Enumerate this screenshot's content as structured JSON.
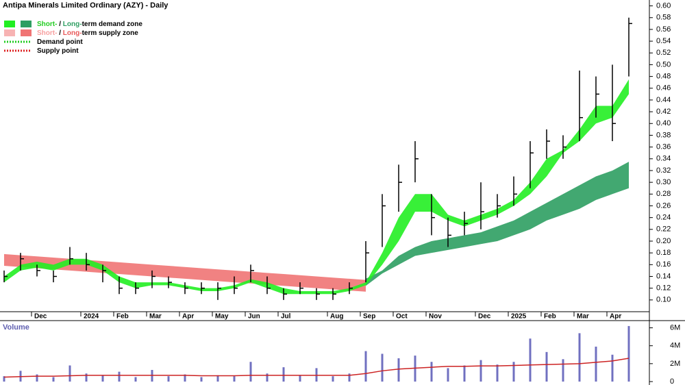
{
  "chart_data": {
    "type": "ohlc",
    "title": "Antipa Minerals Limited Ordinary (AZY) - Daily",
    "legend": [
      {
        "swatches": [
          "#22ee22",
          "#2e9e62"
        ],
        "parts": [
          {
            "text": "Short-",
            "color": "#22cc22"
          },
          {
            "text": " / ",
            "color": "#000000"
          },
          {
            "text": "Long-",
            "color": "#2e9e62"
          },
          {
            "text": "term demand zone",
            "color": "#000000"
          }
        ]
      },
      {
        "swatches": [
          "#f7b3b3",
          "#f07474"
        ],
        "parts": [
          {
            "text": "Short-",
            "color": "#f7a0a0"
          },
          {
            "text": " / ",
            "color": "#000000"
          },
          {
            "text": "Long-",
            "color": "#e85a5a"
          },
          {
            "text": "term supply zone",
            "color": "#000000"
          }
        ]
      },
      {
        "dotted": "#22cc22",
        "parts": [
          {
            "text": "Demand point",
            "color": "#000000"
          }
        ]
      },
      {
        "dotted": "#dd2222",
        "parts": [
          {
            "text": "Supply point",
            "color": "#000000"
          }
        ]
      }
    ],
    "categories": [
      null,
      null,
      "Dec",
      null,
      null,
      "2024",
      null,
      "Feb",
      null,
      "Mar",
      null,
      "Apr",
      null,
      "May",
      null,
      "Jun",
      null,
      "Jul",
      null,
      null,
      "Aug",
      null,
      "Sep",
      null,
      "Oct",
      null,
      "Nov",
      null,
      null,
      "Dec",
      null,
      "2025",
      null,
      "Feb",
      null,
      "Mar",
      null,
      "Apr",
      null
    ],
    "high": [
      0.15,
      0.18,
      0.16,
      0.15,
      0.19,
      0.18,
      0.16,
      0.14,
      0.13,
      0.15,
      0.14,
      0.13,
      0.13,
      0.13,
      0.14,
      0.16,
      0.14,
      0.12,
      0.13,
      0.12,
      0.12,
      0.13,
      0.2,
      0.28,
      0.33,
      0.37,
      0.28,
      0.24,
      0.25,
      0.3,
      0.28,
      0.31,
      0.37,
      0.39,
      0.38,
      0.49,
      0.48,
      0.5,
      0.58
    ],
    "low": [
      0.13,
      0.15,
      0.14,
      0.13,
      0.16,
      0.15,
      0.13,
      0.11,
      0.11,
      0.12,
      0.12,
      0.11,
      0.11,
      0.1,
      0.11,
      0.13,
      0.11,
      0.1,
      0.11,
      0.1,
      0.1,
      0.11,
      0.13,
      0.19,
      0.25,
      0.3,
      0.21,
      0.19,
      0.21,
      0.22,
      0.24,
      0.26,
      0.29,
      0.34,
      0.34,
      0.37,
      0.41,
      0.37,
      0.48
    ],
    "close": [
      0.14,
      0.17,
      0.15,
      0.14,
      0.17,
      0.16,
      0.15,
      0.12,
      0.12,
      0.14,
      0.13,
      0.12,
      0.12,
      0.12,
      0.12,
      0.15,
      0.12,
      0.11,
      0.12,
      0.11,
      0.11,
      0.12,
      0.18,
      0.26,
      0.3,
      0.34,
      0.24,
      0.21,
      0.23,
      0.25,
      0.26,
      0.28,
      0.35,
      0.37,
      0.36,
      0.41,
      0.45,
      0.4,
      0.57
    ],
    "bands": [
      {
        "color": "#f07474",
        "upper": [
          0.178,
          0.176,
          0.174,
          0.172,
          0.17,
          0.168,
          0.166,
          0.164,
          0.162,
          0.16,
          0.158,
          0.156,
          0.154,
          0.152,
          0.15,
          0.148,
          0.146,
          0.144,
          0.142,
          0.14,
          0.138,
          0.136,
          0.134,
          null,
          null,
          null,
          null,
          null,
          null,
          null,
          null,
          null,
          null,
          null,
          null,
          null,
          null,
          null,
          null
        ],
        "lower": [
          0.158,
          0.156,
          0.154,
          0.152,
          0.15,
          0.148,
          0.146,
          0.144,
          0.142,
          0.14,
          0.138,
          0.136,
          0.134,
          0.132,
          0.13,
          0.128,
          0.126,
          0.124,
          0.122,
          0.12,
          0.118,
          0.116,
          0.114,
          null,
          null,
          null,
          null,
          null,
          null,
          null,
          null,
          null,
          null,
          null,
          null,
          null,
          null,
          null,
          null
        ]
      },
      {
        "color": "#2e9e62",
        "upper": [
          null,
          null,
          null,
          null,
          null,
          null,
          null,
          null,
          null,
          null,
          null,
          null,
          null,
          null,
          null,
          null,
          null,
          null,
          null,
          null,
          null,
          null,
          0.136,
          0.15,
          0.175,
          0.19,
          0.2,
          0.205,
          0.21,
          0.215,
          0.225,
          0.235,
          0.25,
          0.265,
          0.28,
          0.295,
          0.31,
          0.32,
          0.335
        ],
        "lower": [
          null,
          null,
          null,
          null,
          null,
          null,
          null,
          null,
          null,
          null,
          null,
          null,
          null,
          null,
          null,
          null,
          null,
          null,
          null,
          null,
          null,
          null,
          0.124,
          0.145,
          0.16,
          0.175,
          0.18,
          0.185,
          0.19,
          0.195,
          0.2,
          0.21,
          0.22,
          0.235,
          0.245,
          0.255,
          0.27,
          0.28,
          0.29
        ]
      },
      {
        "color": "#22ee22",
        "upper": [
          0.14,
          0.16,
          0.165,
          0.16,
          0.17,
          0.17,
          0.16,
          0.14,
          0.13,
          0.13,
          0.13,
          0.125,
          0.12,
          0.12,
          0.125,
          0.135,
          0.13,
          0.12,
          0.115,
          0.115,
          0.115,
          0.12,
          0.13,
          0.18,
          0.24,
          0.28,
          0.28,
          0.245,
          0.235,
          0.245,
          0.255,
          0.27,
          0.3,
          0.34,
          0.355,
          0.39,
          0.43,
          0.43,
          0.475
        ],
        "lower": [
          0.13,
          0.15,
          0.155,
          0.15,
          0.16,
          0.16,
          0.15,
          0.13,
          0.12,
          0.125,
          0.125,
          0.12,
          0.115,
          0.115,
          0.12,
          0.13,
          0.12,
          0.11,
          0.11,
          0.11,
          0.11,
          0.115,
          0.125,
          0.16,
          0.2,
          0.25,
          0.25,
          0.235,
          0.225,
          0.235,
          0.245,
          0.26,
          0.28,
          0.31,
          0.35,
          0.37,
          0.4,
          0.41,
          0.45
        ]
      }
    ],
    "ylim": [
      0.08,
      0.61
    ],
    "yticks": [
      {
        "value": 0.1,
        "label": "0.10"
      },
      {
        "value": 0.12,
        "label": "0.12"
      },
      {
        "value": 0.14,
        "label": "0.14"
      },
      {
        "value": 0.16,
        "label": "0.16"
      },
      {
        "value": 0.18,
        "label": "0.18"
      },
      {
        "value": 0.2,
        "label": "0.20"
      },
      {
        "value": 0.22,
        "label": "0.22"
      },
      {
        "value": 0.24,
        "label": "0.24"
      },
      {
        "value": 0.26,
        "label": "0.26"
      },
      {
        "value": 0.28,
        "label": "0.28"
      },
      {
        "value": 0.3,
        "label": "0.30"
      },
      {
        "value": 0.32,
        "label": "0.32"
      },
      {
        "value": 0.34,
        "label": "0.34"
      },
      {
        "value": 0.36,
        "label": "0.36"
      },
      {
        "value": 0.38,
        "label": "0.38"
      },
      {
        "value": 0.4,
        "label": "0.40"
      },
      {
        "value": 0.42,
        "label": "0.42"
      },
      {
        "value": 0.44,
        "label": "0.44"
      },
      {
        "value": 0.46,
        "label": "0.46"
      },
      {
        "value": 0.48,
        "label": "0.48"
      },
      {
        "value": 0.5,
        "label": "0.50"
      },
      {
        "value": 0.52,
        "label": "0.52"
      },
      {
        "value": 0.54,
        "label": "0.54"
      },
      {
        "value": 0.56,
        "label": "0.56"
      },
      {
        "value": 0.58,
        "label": "0.58"
      },
      {
        "value": 0.6,
        "label": "0.60"
      }
    ],
    "volume": {
      "title": "Volume",
      "color": "#7070c0",
      "ma_color": "#cc2222",
      "values": [
        600000,
        1200000,
        800000,
        500000,
        1800000,
        900000,
        700000,
        1100000,
        500000,
        1300000,
        600000,
        800000,
        500000,
        700000,
        600000,
        2200000,
        900000,
        1600000,
        700000,
        1500000,
        600000,
        900000,
        3400000,
        3100000,
        2600000,
        2900000,
        2200000,
        1500000,
        1800000,
        2400000,
        1900000,
        2200000,
        4800000,
        3300000,
        2500000,
        5400000,
        3900000,
        3000000,
        6200000
      ],
      "ma": [
        500000,
        550000,
        600000,
        600000,
        650000,
        700000,
        700000,
        700000,
        700000,
        700000,
        700000,
        700000,
        650000,
        650000,
        650000,
        700000,
        700000,
        700000,
        700000,
        700000,
        700000,
        700000,
        900000,
        1200000,
        1400000,
        1500000,
        1600000,
        1700000,
        1700000,
        1750000,
        1750000,
        1800000,
        1850000,
        1900000,
        1950000,
        2000000,
        2150000,
        2300000,
        2600000
      ],
      "ylim": [
        0,
        6500000
      ],
      "yticks": [
        0,
        {
          "value": 2000000,
          "label": "2M"
        },
        {
          "value": 4000000,
          "label": "4M"
        },
        {
          "value": 6000000,
          "label": "6M"
        }
      ]
    }
  }
}
